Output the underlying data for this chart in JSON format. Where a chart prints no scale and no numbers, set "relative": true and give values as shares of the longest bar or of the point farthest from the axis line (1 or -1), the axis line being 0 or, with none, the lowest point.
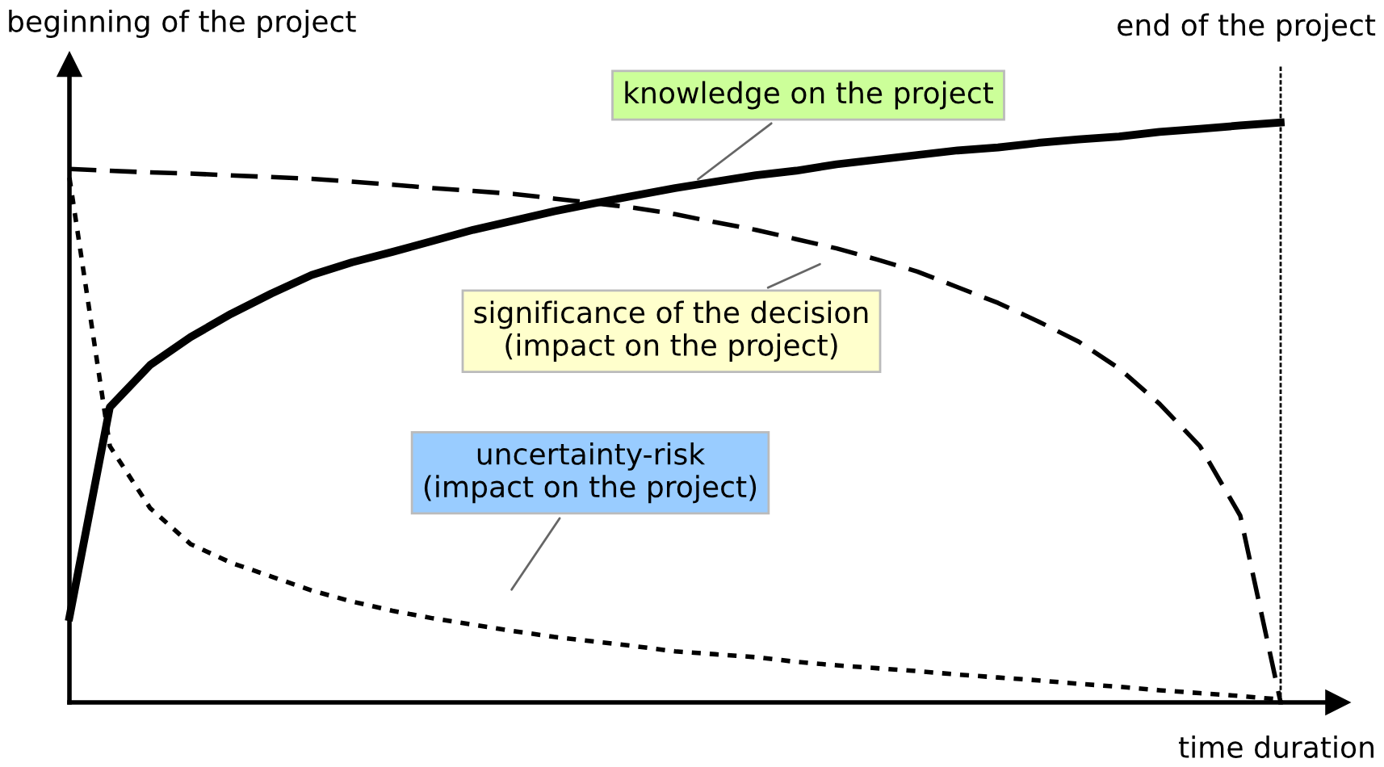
{
  "chart_data": {
    "type": "line",
    "relative": true,
    "xlabel": "time duration",
    "ylabel": "beginning of the project",
    "categories": [
      null,
      null,
      null,
      null,
      null,
      null,
      null,
      null,
      null,
      null,
      null,
      null,
      null,
      null,
      null,
      null,
      null,
      null,
      null,
      null,
      null,
      null,
      null,
      null,
      null,
      null,
      null,
      null,
      null,
      null,
      null
    ],
    "series": [
      {
        "color": "#000000",
        "line_style": "solid",
        "values": [
          0.147,
          0.509,
          0.582,
          0.63,
          0.67,
          0.705,
          0.737,
          0.759,
          0.777,
          0.796,
          0.815,
          0.831,
          0.847,
          0.861,
          0.874,
          0.887,
          0.898,
          0.909,
          0.917,
          0.928,
          0.936,
          0.944,
          0.952,
          0.957,
          0.965,
          0.971,
          0.976,
          0.984,
          0.989,
          0.995,
          1
        ]
      },
      {
        "color": "#000000",
        "line_style": "dashed",
        "values": [
          0.92,
          0.917,
          0.914,
          0.912,
          0.909,
          0.906,
          0.903,
          0.898,
          0.893,
          0.887,
          0.882,
          0.877,
          0.869,
          0.861,
          0.853,
          0.842,
          0.828,
          0.815,
          0.799,
          0.783,
          0.764,
          0.743,
          0.716,
          0.689,
          0.657,
          0.622,
          0.576,
          0.515,
          0.442,
          0.322,
          0
        ]
      },
      {
        "color": "#000000",
        "line_style": "dotted",
        "values": [
          0.905,
          0.442,
          0.335,
          0.273,
          0.241,
          0.217,
          0.193,
          0.174,
          0.158,
          0.145,
          0.134,
          0.123,
          0.113,
          0.105,
          0.097,
          0.088,
          0.083,
          0.078,
          0.07,
          0.064,
          0.059,
          0.054,
          0.048,
          0.043,
          0.038,
          0.032,
          0.027,
          0.021,
          0.016,
          0.011,
          0.005
        ]
      }
    ],
    "annotations": [
      "knowledge on the project",
      "significance of the decision\n(impact on the project)",
      "uncertainty-risk\n(impact on the project)",
      "end of the project"
    ]
  }
}
